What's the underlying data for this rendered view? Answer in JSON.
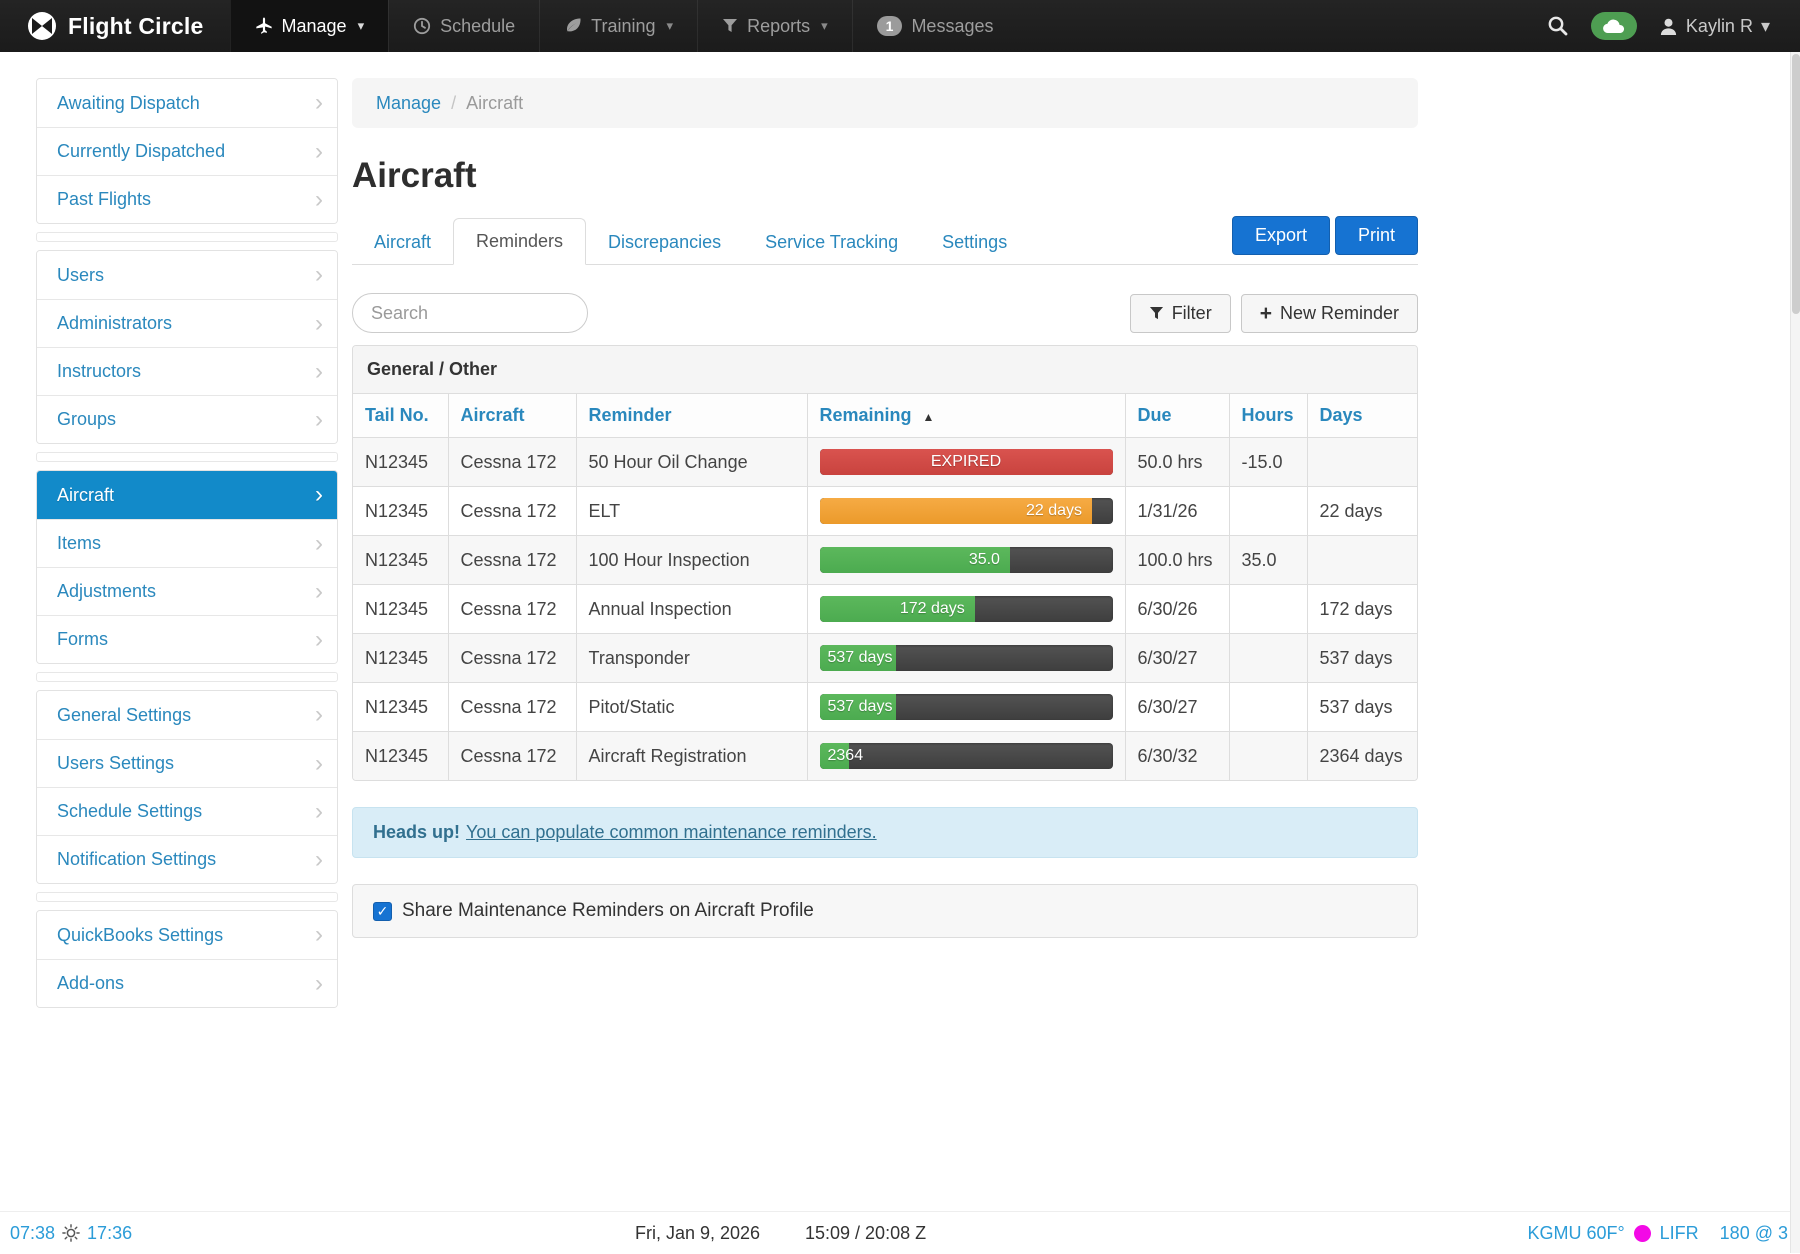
{
  "navbar": {
    "brand": "Flight Circle",
    "items": [
      {
        "label": "Manage",
        "icon": "plane",
        "caret": true,
        "active": true,
        "badge": null
      },
      {
        "label": "Schedule",
        "icon": "clock",
        "caret": false,
        "active": false,
        "badge": null
      },
      {
        "label": "Training",
        "icon": "leaf",
        "caret": true,
        "active": false,
        "badge": null
      },
      {
        "label": "Reports",
        "icon": "funnel",
        "caret": true,
        "active": false,
        "badge": null
      },
      {
        "label": "Messages",
        "icon": null,
        "caret": false,
        "active": false,
        "badge": "1"
      }
    ],
    "user": {
      "name": "Kaylin R"
    }
  },
  "sidebar": {
    "groups": [
      {
        "items": [
          "Awaiting Dispatch",
          "Currently Dispatched",
          "Past Flights"
        ]
      },
      {
        "items": [
          "Users",
          "Administrators",
          "Instructors",
          "Groups"
        ]
      },
      {
        "items": [
          "Aircraft",
          "Items",
          "Adjustments",
          "Forms"
        ]
      },
      {
        "items": [
          "General Settings",
          "Users Settings",
          "Schedule Settings",
          "Notification Settings"
        ]
      },
      {
        "items": [
          "QuickBooks Settings",
          "Add-ons"
        ]
      }
    ],
    "active_item": "Aircraft"
  },
  "breadcrumb": {
    "parent": "Manage",
    "separator": "/",
    "current": "Aircraft"
  },
  "page": {
    "title": "Aircraft"
  },
  "tabs": {
    "labels": [
      "Aircraft",
      "Reminders",
      "Discrepancies",
      "Service Tracking",
      "Settings"
    ],
    "active": "Reminders"
  },
  "actions": {
    "export_label": "Export",
    "print_label": "Print",
    "filter_label": "Filter",
    "new_reminder_label": "New Reminder",
    "search_placeholder": "Search"
  },
  "table": {
    "section_title": "General / Other",
    "columns": [
      "Tail No.",
      "Aircraft",
      "Reminder",
      "Remaining",
      "Due",
      "Hours",
      "Days"
    ],
    "sort_column": "Remaining",
    "rows": [
      {
        "tail": "N12345",
        "aircraft": "Cessna 172",
        "reminder": "50 Hour Oil Change",
        "bar": {
          "label": "EXPIRED",
          "color": "red",
          "percent": 100,
          "align": "center"
        },
        "due": "50.0 hrs",
        "hours": "-15.0",
        "days": ""
      },
      {
        "tail": "N12345",
        "aircraft": "Cessna 172",
        "reminder": "ELT",
        "bar": {
          "label": "22 days",
          "color": "orange",
          "percent": 93,
          "align": "right"
        },
        "due": "1/31/26",
        "hours": "",
        "days": "22 days"
      },
      {
        "tail": "N12345",
        "aircraft": "Cessna 172",
        "reminder": "100 Hour Inspection",
        "bar": {
          "label": "35.0",
          "color": "green",
          "percent": 65,
          "align": "right"
        },
        "due": "100.0 hrs",
        "hours": "35.0",
        "days": ""
      },
      {
        "tail": "N12345",
        "aircraft": "Cessna 172",
        "reminder": "Annual Inspection",
        "bar": {
          "label": "172 days",
          "color": "green",
          "percent": 53,
          "align": "right"
        },
        "due": "6/30/26",
        "hours": "",
        "days": "172 days"
      },
      {
        "tail": "N12345",
        "aircraft": "Cessna 172",
        "reminder": "Transponder",
        "bar": {
          "label": "537 days",
          "color": "green",
          "percent": 26,
          "align": "left"
        },
        "due": "6/30/27",
        "hours": "",
        "days": "537 days"
      },
      {
        "tail": "N12345",
        "aircraft": "Cessna 172",
        "reminder": "Pitot/Static",
        "bar": {
          "label": "537 days",
          "color": "green",
          "percent": 26,
          "align": "left"
        },
        "due": "6/30/27",
        "hours": "",
        "days": "537 days"
      },
      {
        "tail": "N12345",
        "aircraft": "Cessna 172",
        "reminder": "Aircraft Registration",
        "bar": {
          "label": "2364",
          "color": "green",
          "percent": 10,
          "align": "left"
        },
        "due": "6/30/32",
        "hours": "",
        "days": "2364 days"
      }
    ]
  },
  "info_bar": {
    "bold": "Heads up!",
    "link": "You can populate common maintenance reminders."
  },
  "share_checkbox": {
    "label": "Share Maintenance Reminders on Aircraft Profile",
    "checked": true
  },
  "footer": {
    "sunrise": "07:38",
    "sunset": "17:36",
    "date": "Fri, Jan 9, 2026",
    "zulu": "15:09 / 20:08 Z",
    "weather": {
      "station_temp": "KGMU 60F°",
      "flight_rules": "LIFR",
      "wind": "180 @ 3"
    }
  },
  "colors": {
    "accent_blue": "#2a88bd",
    "active_sidebar_blue": "#128ac9",
    "button_blue": "#1673d2",
    "bar_red": "#d9534f",
    "bar_orange": "#f0ad4e",
    "bar_green": "#5cb85c",
    "bar_track": "#474747",
    "info_bg": "#d9edf7",
    "info_text": "#31708f",
    "wx_dot_magenta": "#f309e6",
    "toggle_green": "#4e9e52"
  }
}
